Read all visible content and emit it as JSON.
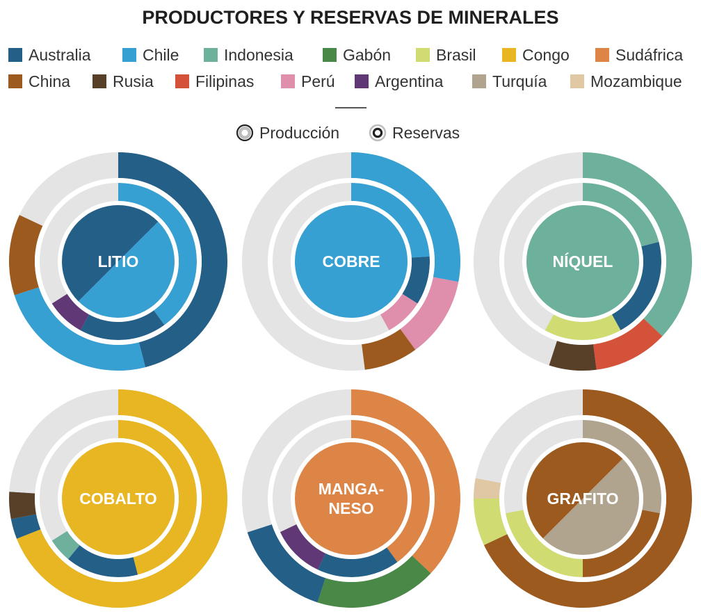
{
  "title": "PRODUCTORES Y RESERVAS DE MINERALES",
  "countries": [
    {
      "name": "Australia",
      "color": "#235f87"
    },
    {
      "name": "Chile",
      "color": "#37a0d2"
    },
    {
      "name": "Indonesia",
      "color": "#6db09c"
    },
    {
      "name": "Gabón",
      "color": "#4a8847"
    },
    {
      "name": "Brasil",
      "color": "#d0dc72"
    },
    {
      "name": "Congo",
      "color": "#e8b523"
    },
    {
      "name": "Sudáfrica",
      "color": "#dd8546"
    },
    {
      "name": "China",
      "color": "#9c5a1e"
    },
    {
      "name": "Rusia",
      "color": "#573f28"
    },
    {
      "name": "Filipinas",
      "color": "#d45239"
    },
    {
      "name": "Perú",
      "color": "#df8fab"
    },
    {
      "name": "Argentina",
      "color": "#613876"
    },
    {
      "name": "Turquía",
      "color": "#b1a48e"
    },
    {
      "name": "Mozambique",
      "color": "#dfc8a3"
    }
  ],
  "other_color": "#e4e4e4",
  "ring_legend": {
    "production": "Producción",
    "reserves": "Reservas"
  },
  "chart_data": [
    {
      "type": "pie",
      "mineral": "LITIO",
      "center_country": "Chile",
      "center_split": [
        {
          "country": "Chile",
          "share": 50
        },
        {
          "country": "Australia",
          "share": 50
        }
      ],
      "reserves": [
        {
          "country": "Chile",
          "share": 40
        },
        {
          "country": "Australia",
          "share": 18
        },
        {
          "country": "Argentina",
          "share": 8
        }
      ],
      "production": [
        {
          "country": "Australia",
          "share": 46
        },
        {
          "country": "Chile",
          "share": 24
        },
        {
          "country": "China",
          "share": 12
        }
      ]
    },
    {
      "type": "pie",
      "mineral": "COBRE",
      "center_country": "Chile",
      "reserves": [
        {
          "country": "Chile",
          "share": 24
        },
        {
          "country": "Australia",
          "share": 10
        },
        {
          "country": "Perú",
          "share": 8
        }
      ],
      "production": [
        {
          "country": "Chile",
          "share": 28
        },
        {
          "country": "Perú",
          "share": 12
        },
        {
          "country": "China",
          "share": 8
        }
      ]
    },
    {
      "type": "pie",
      "mineral": "NÍQUEL",
      "center_country": "Indonesia",
      "reserves": [
        {
          "country": "Indonesia",
          "share": 21
        },
        {
          "country": "Australia",
          "share": 21
        },
        {
          "country": "Brasil",
          "share": 16
        }
      ],
      "production": [
        {
          "country": "Indonesia",
          "share": 37
        },
        {
          "country": "Filipinas",
          "share": 11
        },
        {
          "country": "Rusia",
          "share": 7
        }
      ]
    },
    {
      "type": "pie",
      "mineral": "COBALTO",
      "center_country": "Congo",
      "reserves": [
        {
          "country": "Congo",
          "share": 46
        },
        {
          "country": "Australia",
          "share": 15
        },
        {
          "country": "Indonesia",
          "share": 5
        }
      ],
      "production": [
        {
          "country": "Congo",
          "share": 69
        },
        {
          "country": "Australia",
          "share": 3
        },
        {
          "country": "Rusia",
          "share": 4
        }
      ]
    },
    {
      "type": "pie",
      "mineral": "MANGA-\nNESO",
      "center_country": "Sudáfrica",
      "reserves": [
        {
          "country": "Sudáfrica",
          "share": 40
        },
        {
          "country": "Australia",
          "share": 17
        },
        {
          "country": "Argentina",
          "share": 11
        }
      ],
      "production": [
        {
          "country": "Sudáfrica",
          "share": 37
        },
        {
          "country": "Gabón",
          "share": 18
        },
        {
          "country": "Australia",
          "share": 15
        }
      ]
    },
    {
      "type": "pie",
      "mineral": "GRAFITO",
      "center_country": "China",
      "center_split": [
        {
          "country": "Turquía",
          "share": 50
        },
        {
          "country": "China",
          "share": 50
        }
      ],
      "reserves": [
        {
          "country": "Turquía",
          "share": 28
        },
        {
          "country": "China",
          "share": 22
        },
        {
          "country": "Brasil",
          "share": 22
        }
      ],
      "production": [
        {
          "country": "China",
          "share": 68
        },
        {
          "country": "Brasil",
          "share": 7
        },
        {
          "country": "Mozambique",
          "share": 3
        }
      ]
    }
  ]
}
